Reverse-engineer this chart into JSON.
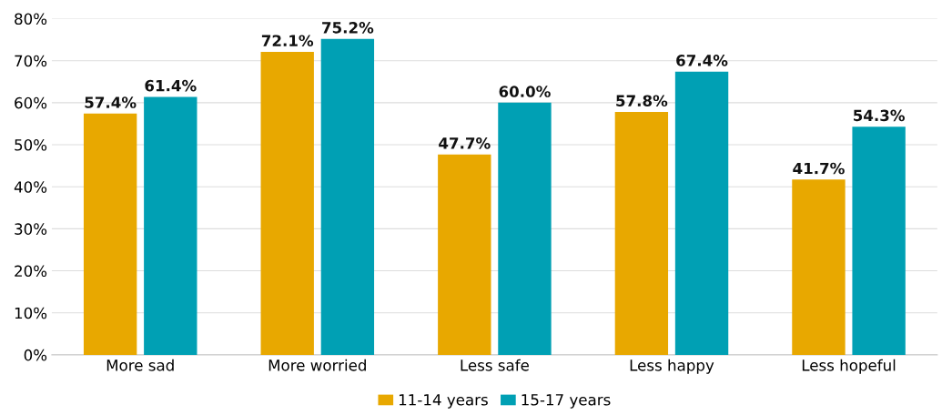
{
  "chart_data": {
    "type": "bar",
    "categories": [
      "More sad",
      "More worried",
      "Less safe",
      "Less happy",
      "Less hopeful"
    ],
    "series": [
      {
        "name": "11-14 years",
        "color": "#e8a800",
        "values": [
          57.4,
          72.1,
          47.7,
          57.8,
          41.7
        ],
        "value_labels": [
          "57.4%",
          "72.1%",
          "47.7%",
          "57.8%",
          "41.7%"
        ]
      },
      {
        "name": "15-17 years",
        "color": "#00a0b4",
        "values": [
          61.4,
          75.2,
          60.0,
          67.4,
          54.3
        ],
        "value_labels": [
          "61.4%",
          "75.2%",
          "60.0%",
          "67.4%",
          "54.3%"
        ]
      }
    ],
    "ylim": [
      0,
      80
    ],
    "yticks": [
      {
        "value": 0,
        "label": "0%"
      },
      {
        "value": 10,
        "label": "10%"
      },
      {
        "value": 20,
        "label": "20%"
      },
      {
        "value": 30,
        "label": "30%"
      },
      {
        "value": 40,
        "label": "40%"
      },
      {
        "value": 50,
        "label": "50%"
      },
      {
        "value": 60,
        "label": "60%"
      },
      {
        "value": 70,
        "label": "70%"
      },
      {
        "value": 80,
        "label": "80%"
      }
    ],
    "grid": "y",
    "legend": "bottom"
  }
}
